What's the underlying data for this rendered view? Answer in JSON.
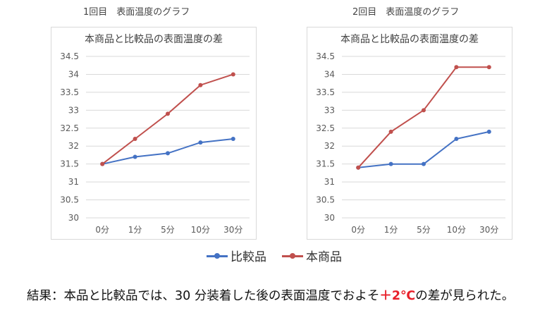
{
  "captions": [
    "1回目　表面温度のグラフ",
    "2回目　表面温度のグラフ"
  ],
  "series_colors": {
    "比較品": "#4472c4",
    "本商品": "#c0504d"
  },
  "chart_data": [
    {
      "type": "line",
      "title": "本商品と比較品の表面温度の差",
      "categories": [
        "0分",
        "1分",
        "5分",
        "10分",
        "30分"
      ],
      "yticks": [
        "30",
        "30.5",
        "31",
        "31.5",
        "32",
        "32.5",
        "33",
        "33.5",
        "34",
        "34.5"
      ],
      "ylim": [
        30,
        34.5
      ],
      "grid": true,
      "series": [
        {
          "name": "比較品",
          "values": [
            31.5,
            31.7,
            31.8,
            32.1,
            32.2
          ]
        },
        {
          "name": "本商品",
          "values": [
            31.5,
            32.2,
            32.9,
            33.7,
            34.0
          ]
        }
      ]
    },
    {
      "type": "line",
      "title": "本商品と比較品の表面温度の差",
      "categories": [
        "0分",
        "1分",
        "5分",
        "10分",
        "30分"
      ],
      "yticks": [
        "30",
        "30.5",
        "31",
        "31.5",
        "32",
        "32.5",
        "33",
        "33.5",
        "34",
        "34.5"
      ],
      "ylim": [
        30,
        34.5
      ],
      "grid": true,
      "series": [
        {
          "name": "比較品",
          "values": [
            31.4,
            31.5,
            31.5,
            32.2,
            32.4
          ]
        },
        {
          "name": "本商品",
          "values": [
            31.4,
            32.4,
            33.0,
            34.2,
            34.2
          ]
        }
      ]
    }
  ],
  "legend": {
    "placement": "bottom",
    "items": [
      "比較品",
      "本商品"
    ]
  },
  "result": {
    "prefix": "結果：本品と比較品では、30 分装着した後の表面温度でおよそ",
    "highlight": "＋2℃",
    "suffix": "の差が見られた。"
  }
}
